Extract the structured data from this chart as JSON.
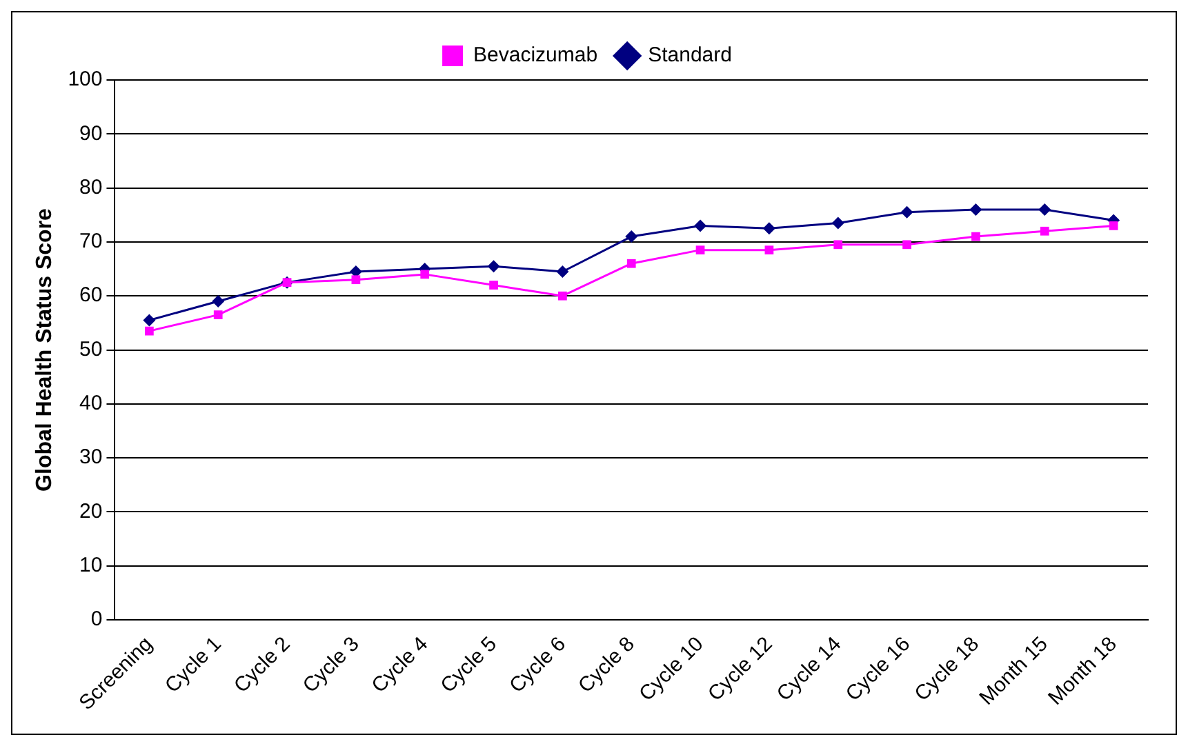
{
  "chart_data": {
    "type": "line",
    "ylabel": "Global Health Status Score",
    "categories": [
      "Screening",
      "Cycle 1",
      "Cycle 2",
      "Cycle 3",
      "Cycle 4",
      "Cycle 5",
      "Cycle 6",
      "Cycle 8",
      "Cycle 10",
      "Cycle 12",
      "Cycle 14",
      "Cycle 16",
      "Cycle 18",
      "Month 15",
      "Month 18"
    ],
    "series": [
      {
        "name": "Standard",
        "color": "#000080",
        "marker": "diamond",
        "values": [
          55.5,
          59,
          62.5,
          64.5,
          65,
          65.5,
          64.5,
          71,
          73,
          72.5,
          73.5,
          75.5,
          76,
          76,
          74
        ]
      },
      {
        "name": "Bevacizumab",
        "color": "#ff00ff",
        "marker": "square",
        "values": [
          53.5,
          56.5,
          62.5,
          63,
          64,
          62,
          60,
          66,
          68.5,
          68.5,
          69.5,
          69.5,
          71,
          72,
          73
        ]
      }
    ],
    "ylim": [
      0,
      100
    ],
    "yticks": [
      0,
      10,
      20,
      30,
      40,
      50,
      60,
      70,
      80,
      90,
      100
    ],
    "grid": "y",
    "legend": "top"
  }
}
